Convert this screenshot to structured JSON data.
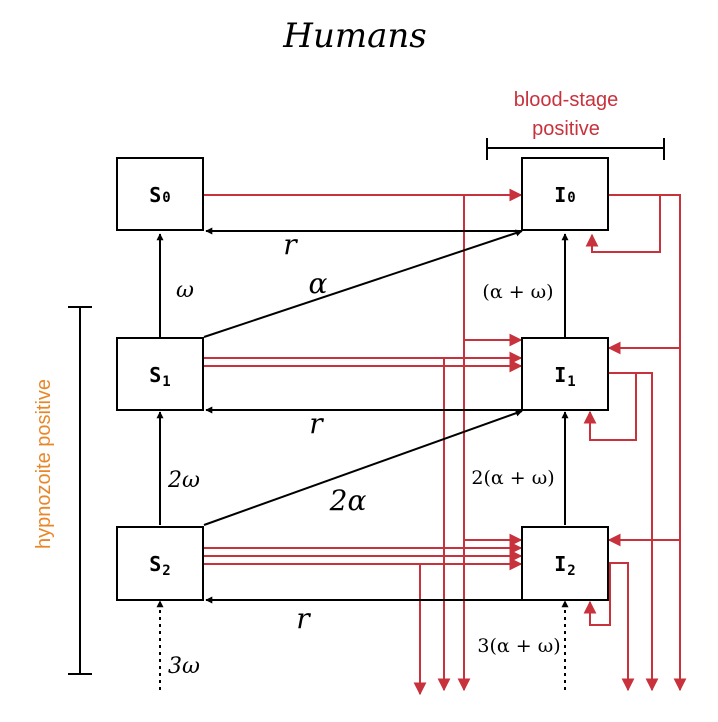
{
  "title": "Humans",
  "colors": {
    "black": "#000000",
    "red": "#c8323c",
    "orange": "#e8872a"
  },
  "boxes": {
    "s0": {
      "main": "S",
      "sub": "0"
    },
    "s1": {
      "main": "S",
      "sub": "1"
    },
    "s2": {
      "main": "S",
      "sub": "2"
    },
    "i0": {
      "main": "I",
      "sub": "0"
    },
    "i1": {
      "main": "I",
      "sub": "1"
    },
    "i2": {
      "main": "I",
      "sub": "2"
    }
  },
  "rates": {
    "r_top": "r",
    "r_mid": "r",
    "r_bot": "r",
    "omega": "ω",
    "two_omega": "2ω",
    "three_omega": "3ω",
    "alpha": "α",
    "two_alpha": "2α",
    "alpha_omega": "(α + ω)",
    "two_alpha_omega": "2(α + ω)",
    "three_alpha_omega": "3(α + ω)"
  },
  "brackets": {
    "blood_stage_line1": "blood-stage",
    "blood_stage_line2": "positive",
    "hypnozoite": "hypnozoite positive"
  }
}
